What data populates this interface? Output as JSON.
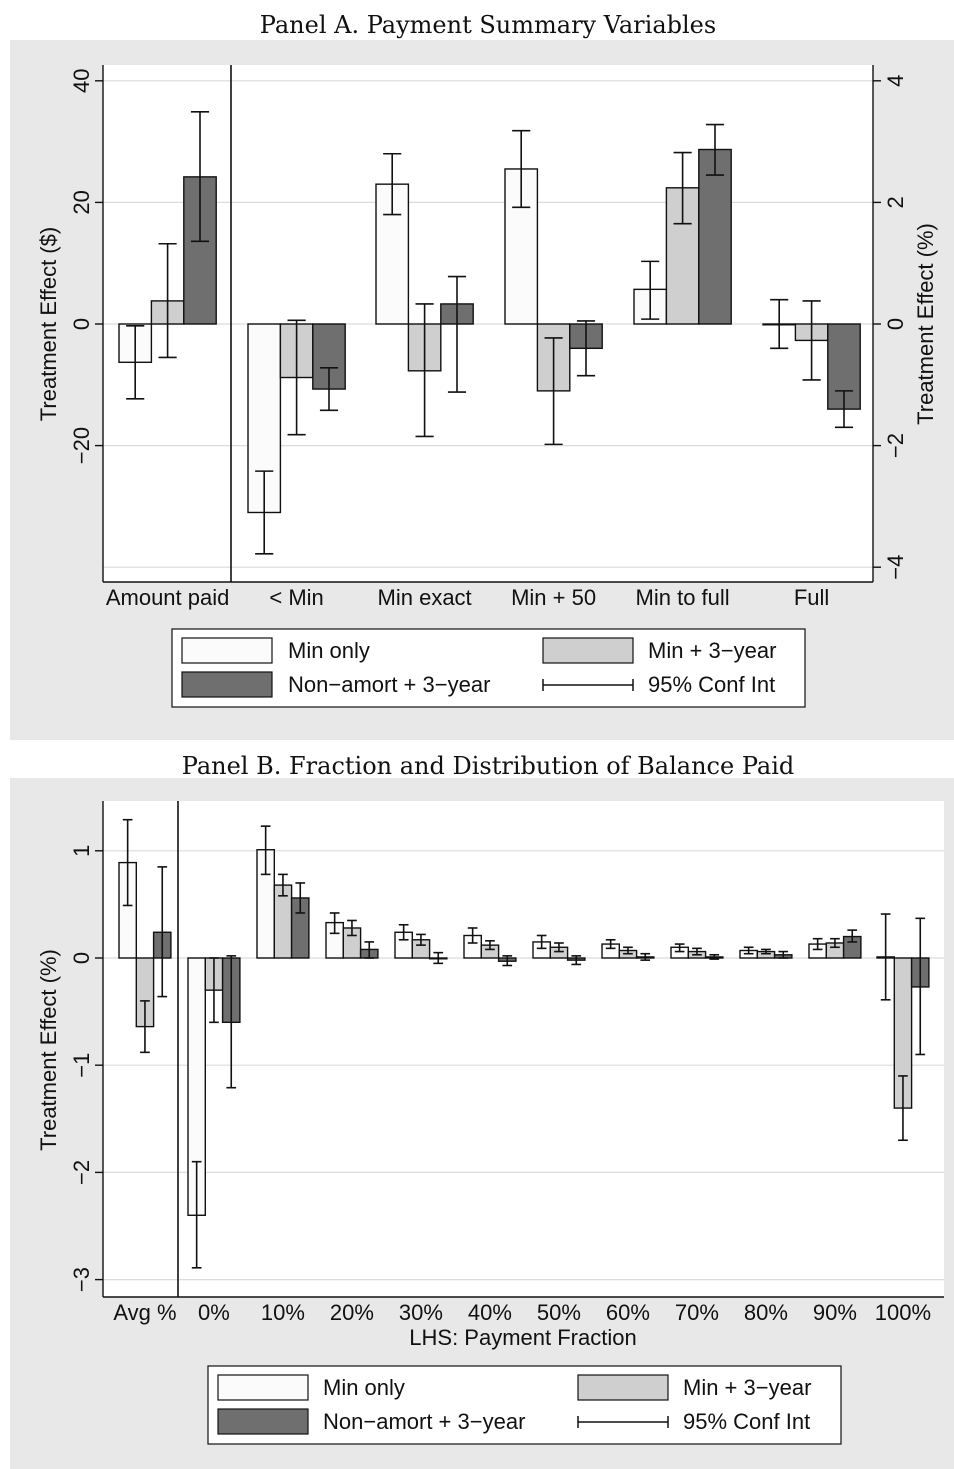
{
  "colors": {
    "series": [
      "#fbfbfb",
      "#cfcfcf",
      "#6f6f6f"
    ],
    "outer_bg": "#e8e8e8",
    "plot_bg": "#ffffff",
    "grid": "#dcdcdc",
    "stroke": "#111111"
  },
  "legend": {
    "min_only": "Min only",
    "min_3year": "Min + 3−year",
    "nonamort_3year": "Non−amort + 3−year",
    "ci": "95% Conf Int"
  },
  "chart_data": [
    {
      "type": "bar",
      "title": "Panel A. Payment Summary Variables",
      "ylabel": "Treatment Effect ($)",
      "y2label": "Treatment Effect (%)",
      "xlabel": "",
      "ylim": [
        -40,
        40
      ],
      "y2lim": [
        -4,
        4
      ],
      "yticks": [
        -20,
        0,
        20,
        40
      ],
      "y2ticks": [
        -4,
        -2,
        0,
        2,
        4
      ],
      "grid": true,
      "legend_position": "bottom",
      "categories": [
        "Amount paid",
        "< Min",
        "Min exact",
        "Min + 50",
        "Min to full",
        "Full"
      ],
      "separator_after_category": 0,
      "category_axis": [
        "left",
        "right",
        "right",
        "right",
        "right",
        "right"
      ],
      "series": [
        {
          "name": "Min only",
          "values": [
            -6.3,
            -3.1,
            2.3,
            2.55,
            0.57,
            0.0
          ],
          "ci_low": [
            -12.3,
            -3.78,
            1.8,
            1.92,
            0.08,
            -0.4
          ],
          "ci_high": [
            -0.3,
            -2.42,
            2.8,
            3.18,
            1.03,
            0.4
          ]
        },
        {
          "name": "Min + 3−year",
          "values": [
            3.8,
            -0.88,
            -0.77,
            -1.1,
            2.24,
            -0.27
          ],
          "ci_low": [
            -5.5,
            -1.82,
            -1.85,
            -1.98,
            1.65,
            -0.92
          ],
          "ci_high": [
            13.2,
            0.06,
            0.33,
            -0.23,
            2.82,
            0.38
          ]
        },
        {
          "name": "Non−amort + 3−year",
          "values": [
            24.2,
            -1.07,
            0.33,
            -0.4,
            2.87,
            -1.4
          ],
          "ci_low": [
            13.6,
            -1.42,
            -1.12,
            -0.85,
            2.45,
            -1.7
          ],
          "ci_high": [
            34.9,
            -0.72,
            0.78,
            0.05,
            3.28,
            -1.1
          ]
        }
      ]
    },
    {
      "type": "bar",
      "title": "Panel B. Fraction and Distribution of Balance Paid",
      "ylabel": "Treatment Effect (%)",
      "xlabel": "LHS: Payment Fraction",
      "ylim": [
        -3,
        1.4
      ],
      "yticks": [
        -3,
        -2,
        -1,
        0,
        1
      ],
      "grid": true,
      "legend_position": "bottom",
      "categories": [
        "Avg %",
        "0%",
        "10%",
        "20%",
        "30%",
        "40%",
        "50%",
        "60%",
        "70%",
        "80%",
        "90%",
        "100%"
      ],
      "separator_after_category": 0,
      "series": [
        {
          "name": "Min only",
          "values": [
            0.89,
            -2.4,
            1.01,
            0.33,
            0.24,
            0.21,
            0.15,
            0.13,
            0.1,
            0.07,
            0.13,
            0.01
          ],
          "ci_low": [
            0.49,
            -2.89,
            0.78,
            0.23,
            0.17,
            0.14,
            0.09,
            0.09,
            0.06,
            0.04,
            0.08,
            -0.39
          ],
          "ci_high": [
            1.29,
            -1.9,
            1.23,
            0.42,
            0.31,
            0.28,
            0.21,
            0.17,
            0.13,
            0.1,
            0.18,
            0.41
          ]
        },
        {
          "name": "Min + 3−year",
          "values": [
            -0.64,
            -0.3,
            0.68,
            0.28,
            0.17,
            0.12,
            0.1,
            0.07,
            0.06,
            0.06,
            0.14,
            -1.4
          ],
          "ci_low": [
            -0.88,
            -0.6,
            0.58,
            0.21,
            0.12,
            0.08,
            0.06,
            0.04,
            0.03,
            0.04,
            0.1,
            -1.7
          ],
          "ci_high": [
            -0.4,
            0.0,
            0.78,
            0.35,
            0.22,
            0.16,
            0.14,
            0.1,
            0.09,
            0.08,
            0.18,
            -1.1
          ]
        },
        {
          "name": "Non−amort + 3−year",
          "values": [
            0.24,
            -0.6,
            0.56,
            0.08,
            0.0,
            -0.03,
            -0.02,
            0.01,
            0.01,
            0.03,
            0.2,
            -0.27
          ],
          "ci_low": [
            -0.36,
            -1.21,
            0.42,
            0.0,
            -0.05,
            -0.07,
            -0.06,
            -0.02,
            -0.01,
            0.0,
            0.15,
            -0.9
          ],
          "ci_high": [
            0.85,
            0.02,
            0.7,
            0.15,
            0.05,
            0.02,
            0.02,
            0.04,
            0.03,
            0.06,
            0.26,
            0.37
          ]
        }
      ]
    }
  ]
}
